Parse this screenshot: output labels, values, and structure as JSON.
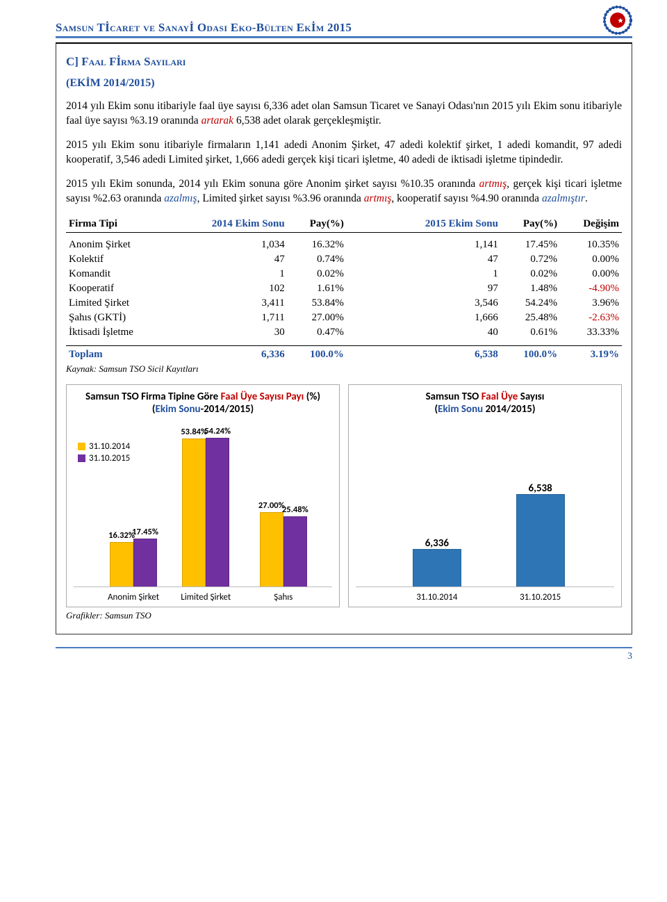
{
  "header": {
    "title_prefix": "Samsun Tİcaret ve Sanayİ Odasi Eko-Bülten ",
    "title_month": "Ekİm ",
    "title_year": "2015"
  },
  "section": {
    "heading": "C] Faal Fİrma Sayilari",
    "subheading": "(EKİM 2014/2015)"
  },
  "paragraphs": {
    "p1_a": "2014 yılı Ekim sonu itibariyle faal üye sayısı 6,336 adet olan Samsun Ticaret ve Sanayi Odası'nın 2015 yılı Ekim sonu itibariyle faal üye sayısı %3.19 oranında ",
    "p1_b": "artarak",
    "p1_c": " 6,538 adet olarak gerçekleşmiştir.",
    "p2": "2015 yılı Ekim sonu itibariyle firmaların 1,141 adedi Anonim Şirket, 47 adedi kolektif şirket, 1 adedi komandit, 97 adedi kooperatif, 3,546 adedi Limited şirket, 1,666 adedi gerçek kişi ticari işletme, 40 adedi de iktisadi işletme tipindedir.",
    "p3_a": "2015 yılı Ekim sonunda, 2014 yılı Ekim sonuna göre Anonim şirket sayısı %10.35 oranında ",
    "p3_b": "artmış",
    "p3_c": ", gerçek kişi ticari işletme sayısı %2.63 oranında ",
    "p3_d": "azalmış",
    "p3_e": ", Limited şirket sayısı %3.96 oranında ",
    "p3_f": "artmış",
    "p3_g": ", kooperatif sayısı %4.90 oranında ",
    "p3_h": "azalmıştır",
    "p3_i": "."
  },
  "table": {
    "headers": {
      "c0": "Firma Tipi",
      "c1": "2014 Ekim Sonu",
      "c2": "Pay(%)",
      "c3": "2015 Ekim Sonu",
      "c4": "Pay(%)",
      "c5": "Değişim"
    },
    "rows": [
      {
        "name": "Anonim Şirket",
        "v2014": "1,034",
        "p2014": "16.32%",
        "v2015": "1,141",
        "p2015": "17.45%",
        "chg": "10.35%",
        "neg": false
      },
      {
        "name": "Kolektif",
        "v2014": "47",
        "p2014": "0.74%",
        "v2015": "47",
        "p2015": "0.72%",
        "chg": "0.00%",
        "neg": false
      },
      {
        "name": "Komandit",
        "v2014": "1",
        "p2014": "0.02%",
        "v2015": "1",
        "p2015": "0.02%",
        "chg": "0.00%",
        "neg": false
      },
      {
        "name": "Kooperatif",
        "v2014": "102",
        "p2014": "1.61%",
        "v2015": "97",
        "p2015": "1.48%",
        "chg": "-4.90%",
        "neg": true
      },
      {
        "name": "Limited Şirket",
        "v2014": "3,411",
        "p2014": "53.84%",
        "v2015": "3,546",
        "p2015": "54.24%",
        "chg": "3.96%",
        "neg": false
      },
      {
        "name": "Şahıs (GKTİ)",
        "v2014": "1,711",
        "p2014": "27.00%",
        "v2015": "1,666",
        "p2015": "25.48%",
        "chg": "-2.63%",
        "neg": true
      },
      {
        "name": "İktisadi İşletme",
        "v2014": "30",
        "p2014": "0.47%",
        "v2015": "40",
        "p2015": "0.61%",
        "chg": "33.33%",
        "neg": false
      }
    ],
    "total": {
      "name": "Toplam",
      "v2014": "6,336",
      "p2014": "100.0%",
      "v2015": "6,538",
      "p2015": "100.0%",
      "chg": "3.19%"
    },
    "source": "Kaynak: Samsun TSO Sicil Kayıtları"
  },
  "chart1": {
    "type": "bar",
    "title_a": "Samsun TSO Firma Tipine Göre ",
    "title_b": "Faal Üye Sayısı Payı ",
    "title_c": "(%) (",
    "title_d": "Ekim Sonu",
    "title_e": "-2014/2015)",
    "legend": [
      "31.10.2014",
      "31.10.2015"
    ],
    "colors": [
      "#ffc000",
      "#7030a0"
    ],
    "ylim": 60,
    "categories": [
      "Anonim Şirket",
      "Limited Şirket",
      "Şahıs"
    ],
    "series": [
      [
        16.32,
        53.84,
        27.0
      ],
      [
        17.45,
        54.24,
        25.48
      ]
    ],
    "value_labels": [
      [
        "16.32%",
        "53.84%",
        "27.00%"
      ],
      [
        "17.45%",
        "54.24%",
        "25.48%"
      ]
    ]
  },
  "chart2": {
    "type": "bar",
    "title_a": "Samsun TSO ",
    "title_b": "Faal Üye ",
    "title_c": "Sayısı",
    "title_d": "(",
    "title_e": "Ekim Sonu ",
    "title_f": "2014/2015)",
    "color": "#2e75b6",
    "ylim": 6800,
    "ymin": 6200,
    "categories": [
      "31.10.2014",
      "31.10.2015"
    ],
    "values": [
      6336,
      6538
    ],
    "value_labels": [
      "6,336",
      "6,538"
    ]
  },
  "charts_source": "Grafikler: Samsun TSO",
  "page_number": "3"
}
